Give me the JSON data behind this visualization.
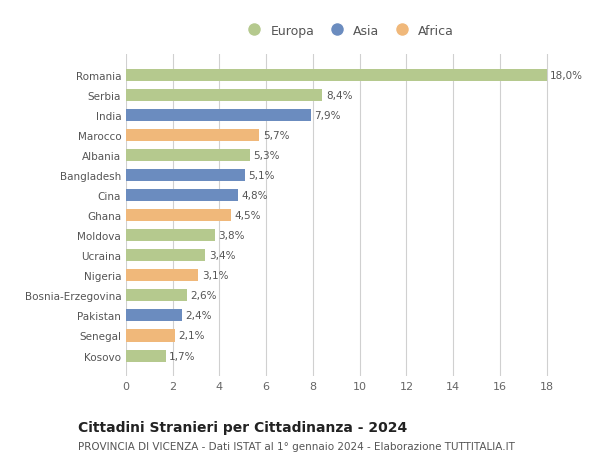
{
  "countries": [
    "Romania",
    "Serbia",
    "India",
    "Marocco",
    "Albania",
    "Bangladesh",
    "Cina",
    "Ghana",
    "Moldova",
    "Ucraina",
    "Nigeria",
    "Bosnia-Erzegovina",
    "Pakistan",
    "Senegal",
    "Kosovo"
  ],
  "values": [
    18.0,
    8.4,
    7.9,
    5.7,
    5.3,
    5.1,
    4.8,
    4.5,
    3.8,
    3.4,
    3.1,
    2.6,
    2.4,
    2.1,
    1.7
  ],
  "labels": [
    "18,0%",
    "8,4%",
    "7,9%",
    "5,7%",
    "5,3%",
    "5,1%",
    "4,8%",
    "4,5%",
    "3,8%",
    "3,4%",
    "3,1%",
    "2,6%",
    "2,4%",
    "2,1%",
    "1,7%"
  ],
  "continents": [
    "Europa",
    "Europa",
    "Asia",
    "Africa",
    "Europa",
    "Asia",
    "Asia",
    "Africa",
    "Europa",
    "Europa",
    "Africa",
    "Europa",
    "Asia",
    "Africa",
    "Europa"
  ],
  "colors": {
    "Europa": "#b5c98e",
    "Asia": "#6b8cbf",
    "Africa": "#f0b87a"
  },
  "xlim": [
    0,
    19
  ],
  "xticks": [
    0,
    2,
    4,
    6,
    8,
    10,
    12,
    14,
    16,
    18
  ],
  "title": "Cittadini Stranieri per Cittadinanza - 2024",
  "subtitle": "PROVINCIA DI VICENZA - Dati ISTAT al 1° gennaio 2024 - Elaborazione TUTTITALIA.IT",
  "bg_color": "#ffffff",
  "grid_color": "#d0d0d0",
  "bar_height": 0.6,
  "title_fontsize": 10,
  "subtitle_fontsize": 7.5,
  "label_fontsize": 7.5,
  "ytick_fontsize": 7.5,
  "xtick_fontsize": 8,
  "legend_fontsize": 9
}
